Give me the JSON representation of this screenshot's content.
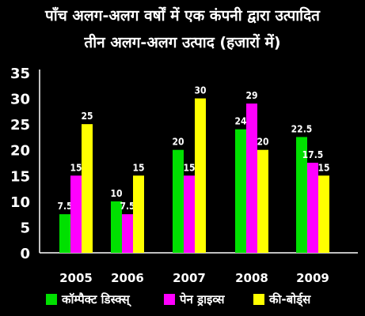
{
  "chart_data": {
    "type": "bar",
    "title_line1": "पाँच अलग-अलग वर्षों में एक कंपनी द्वारा उत्पादित",
    "title_line2": "तीन अलग-अलग उत्पाद (हजारों में)",
    "categories": [
      "2005",
      "2006",
      "2007",
      "2008",
      "2009"
    ],
    "series": [
      {
        "name": "कॉम्पैक्ट डिस्क्स्",
        "color": "#00e000",
        "values": [
          7.5,
          10,
          20,
          24,
          22.5
        ]
      },
      {
        "name": "पेन ड्राइव्स",
        "color": "#ff00ff",
        "values": [
          15,
          7.5,
          15,
          29,
          17.5
        ]
      },
      {
        "name": "की-बोर्ड्स",
        "color": "#ffff00",
        "values": [
          25,
          15,
          30,
          20,
          15
        ]
      }
    ],
    "yticks": [
      0,
      5,
      10,
      15,
      20,
      25,
      30,
      35
    ],
    "ylim": [
      0,
      35
    ],
    "legend": "bottom",
    "grid": false
  }
}
